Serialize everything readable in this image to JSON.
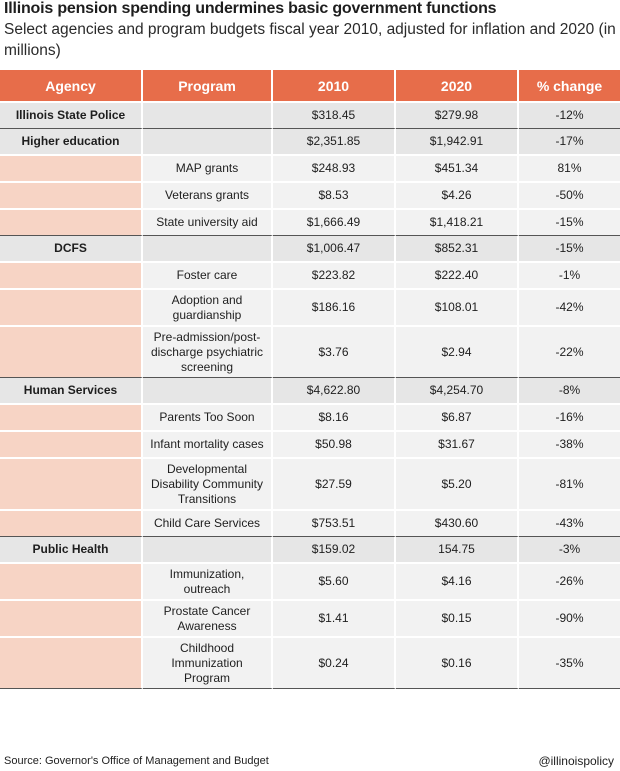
{
  "title": "Illinois pension spending undermines basic government functions",
  "subtitle": "Select agencies and program budgets fiscal year 2010, adjusted for inflation and 2020 (in millions)",
  "headers": [
    "Agency",
    "Program",
    "2010",
    "2020",
    "% change"
  ],
  "rows": [
    {
      "agency": "Illinois State Police",
      "program": "",
      "v2010": "$318.45",
      "v2020": "$279.98",
      "change": "-12%",
      "kind": "agency",
      "end": true
    },
    {
      "agency": "Higher education",
      "program": "",
      "v2010": "$2,351.85",
      "v2020": "$1,942.91",
      "change": "-17%",
      "kind": "agency"
    },
    {
      "agency": "",
      "program": "MAP grants",
      "v2010": "$248.93",
      "v2020": "$451.34",
      "change": "81%",
      "kind": "sub"
    },
    {
      "agency": "",
      "program": "Veterans grants",
      "v2010": "$8.53",
      "v2020": "$4.26",
      "change": "-50%",
      "kind": "sub"
    },
    {
      "agency": "",
      "program": "State university aid",
      "v2010": "$1,666.49",
      "v2020": "$1,418.21",
      "change": "-15%",
      "kind": "sub",
      "end": true
    },
    {
      "agency": "DCFS",
      "program": "",
      "v2010": "$1,006.47",
      "v2020": "$852.31",
      "change": "-15%",
      "kind": "agency"
    },
    {
      "agency": "",
      "program": "Foster care",
      "v2010": "$223.82",
      "v2020": "$222.40",
      "change": "-1%",
      "kind": "sub"
    },
    {
      "agency": "",
      "program": "Adoption and guardianship",
      "v2010": "$186.16",
      "v2020": "$108.01",
      "change": "-42%",
      "kind": "sub",
      "lines": 2
    },
    {
      "agency": "",
      "program": "Pre-admission/post-discharge psychiatric screening",
      "v2010": "$3.76",
      "v2020": "$2.94",
      "change": "-22%",
      "kind": "sub",
      "lines": 3,
      "end": true
    },
    {
      "agency": "Human Services",
      "program": "",
      "v2010": "$4,622.80",
      "v2020": "$4,254.70",
      "change": "-8%",
      "kind": "agency"
    },
    {
      "agency": "",
      "program": "Parents Too Soon",
      "v2010": "$8.16",
      "v2020": "$6.87",
      "change": "-16%",
      "kind": "sub"
    },
    {
      "agency": "",
      "program": "Infant mortality cases",
      "v2010": "$50.98",
      "v2020": "$31.67",
      "change": "-38%",
      "kind": "sub"
    },
    {
      "agency": "",
      "program": "Developmental Disability Community Transitions",
      "v2010": "$27.59",
      "v2020": "$5.20",
      "change": "-81%",
      "kind": "sub",
      "lines": 3
    },
    {
      "agency": "",
      "program": "Child Care Services",
      "v2010": "$753.51",
      "v2020": "$430.60",
      "change": "-43%",
      "kind": "sub",
      "end": true
    },
    {
      "agency": "Public Health",
      "program": "",
      "v2010": "$159.02",
      "v2020": "154.75",
      "change": "-3%",
      "kind": "agency"
    },
    {
      "agency": "",
      "program": "Immunization, outreach",
      "v2010": "$5.60",
      "v2020": "$4.16",
      "change": "-26%",
      "kind": "sub",
      "lines": 2
    },
    {
      "agency": "",
      "program": "Prostate Cancer Awareness",
      "v2010": "$1.41",
      "v2020": "$0.15",
      "change": "-90%",
      "kind": "sub",
      "lines": 2
    },
    {
      "agency": "",
      "program": "Childhood Immunization Program",
      "v2010": "$0.24",
      "v2020": "$0.16",
      "change": "-35%",
      "kind": "sub",
      "lines": 3,
      "end": true
    }
  ],
  "source": "Source: Governor's Office of Management and Budget",
  "handle": "@illinoispolicy",
  "colors": {
    "header": "#e76d4a",
    "agency_cell": "#f7d4c5",
    "row_fill": "#f2f2f2",
    "agency_row": "#e6e6e6"
  }
}
